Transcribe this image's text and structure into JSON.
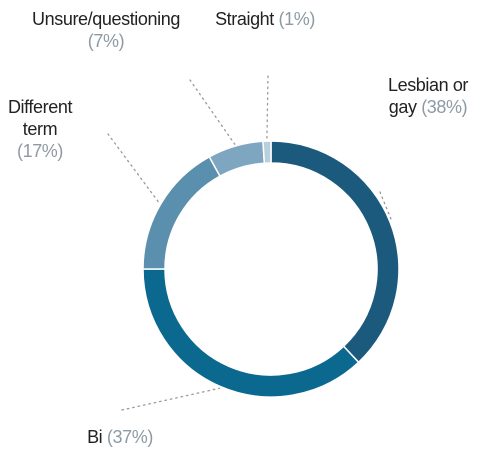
{
  "chart_data": {
    "type": "donut",
    "categories": [
      "Lesbian or gay",
      "Bi",
      "Different term",
      "Unsure/questioning",
      "Straight"
    ],
    "values": [
      38,
      37,
      17,
      7,
      1
    ],
    "value_labels": [
      "(38%)",
      "(37%)",
      "(17%)",
      "(7%)",
      "(1%)"
    ],
    "colors": [
      "#1b5a7d",
      "#0b6990",
      "#5a8fae",
      "#7ea6c0",
      "#b8cfdc"
    ]
  }
}
